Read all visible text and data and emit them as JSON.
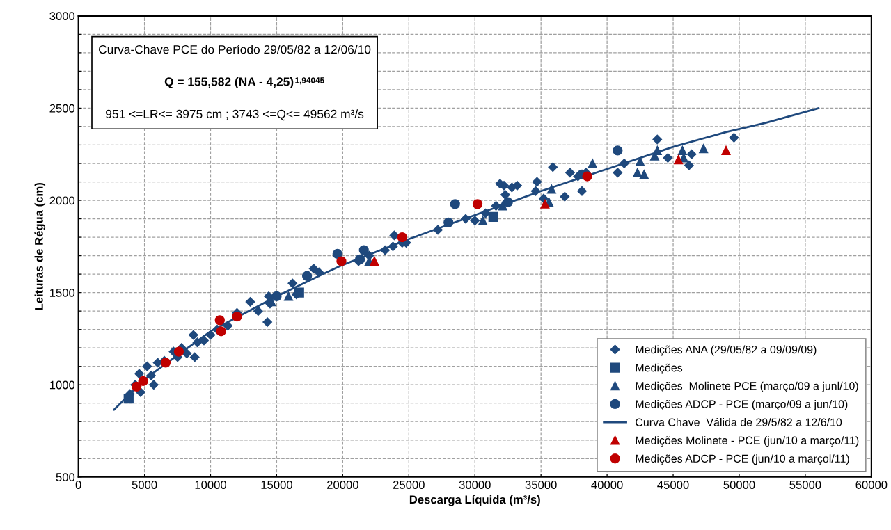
{
  "chart_data": {
    "type": "scatter",
    "xlabel": "Descarga Líquida (m³/s)",
    "ylabel": "Leituras de Régua (cm)",
    "annotations": [
      "Curva-Chave PCE do Período 29/05/82 a 12/06/10",
      "Q = 155,582 (NA - 4,25)$^{1,94045}$",
      "951 <=LR<= 3975 cm ; 3743 <=Q<= 49562 m³/s"
    ],
    "xlim": [
      0,
      60000
    ],
    "xticks": [
      0,
      5000,
      10000,
      15000,
      20000,
      25000,
      30000,
      35000,
      40000,
      45000,
      50000,
      55000,
      60000
    ],
    "ylim": [
      500,
      3000
    ],
    "yticks": [
      500,
      {
        "value": 600,
        "label": null
      },
      {
        "value": 700,
        "label": null
      },
      {
        "value": 800,
        "label": null
      },
      {
        "value": 900,
        "label": null
      },
      1000,
      {
        "value": 1100,
        "label": null
      },
      {
        "value": 1200,
        "label": null
      },
      {
        "value": 1300,
        "label": null
      },
      {
        "value": 1400,
        "label": null
      },
      1500,
      {
        "value": 1600,
        "label": null
      },
      {
        "value": 1700,
        "label": null
      },
      {
        "value": 1800,
        "label": null
      },
      {
        "value": 1900,
        "label": null
      },
      2000,
      {
        "value": 2100,
        "label": null
      },
      {
        "value": 2200,
        "label": null
      },
      {
        "value": 2300,
        "label": null
      },
      {
        "value": 2400,
        "label": null
      },
      2500,
      {
        "value": 2600,
        "label": null
      },
      {
        "value": 2700,
        "label": null
      },
      {
        "value": 2800,
        "label": null
      },
      {
        "value": 2900,
        "label": null
      },
      3000
    ],
    "grid": true,
    "legend": "bottom right",
    "series": [
      {
        "name": "Medições ANA (29/05/82 a 09/09/09)",
        "marker": "diamond",
        "color": "#1f497d",
        "x": [
          3900,
          4300,
          4600,
          4700,
          5200,
          5500,
          5700,
          6000,
          6500,
          7200,
          7500,
          7800,
          8200,
          8700,
          8800,
          9000,
          9500,
          10000,
          10500,
          11300,
          12000,
          13000,
          13600,
          14300,
          14500,
          14400,
          16200,
          16500,
          17800,
          18200,
          21200,
          22000,
          23200,
          23800,
          23900,
          24500,
          24800,
          27200,
          29300,
          30000,
          30800,
          31600,
          31900,
          32200,
          32300,
          32800,
          33200,
          34600,
          34700,
          35200,
          35900,
          36800,
          37200,
          37800,
          38100,
          38400,
          40800,
          41300,
          43800,
          44600,
          46200,
          46400,
          49600
        ],
        "values": [
          950,
          1000,
          1060,
          960,
          1100,
          1050,
          1000,
          1120,
          1130,
          1180,
          1150,
          1200,
          1170,
          1270,
          1150,
          1230,
          1240,
          1270,
          1300,
          1320,
          1390,
          1450,
          1400,
          1340,
          1440,
          1480,
          1550,
          1490,
          1630,
          1610,
          1670,
          1700,
          1730,
          1750,
          1810,
          1770,
          1770,
          1840,
          1900,
          1890,
          1930,
          1970,
          2090,
          2080,
          2030,
          2070,
          2080,
          2050,
          2100,
          2010,
          2180,
          2020,
          2150,
          2130,
          2050,
          2150,
          2150,
          2200,
          2330,
          2230,
          2190,
          2250,
          2340
        ]
      },
      {
        "name": "Medições",
        "marker": "square",
        "color": "#1f497d",
        "x": [
          3800,
          16700,
          31400
        ],
        "values": [
          925,
          1500,
          1910
        ]
      },
      {
        "name": "Medições  Molinete PCE (março/09 a junl/10)",
        "marker": "triangle",
        "color": "#1f497d",
        "x": [
          14600,
          15900,
          22000,
          30600,
          32100,
          35600,
          35800,
          38900,
          42300,
          42500,
          42800,
          43600,
          43800,
          45700,
          45800,
          47300
        ],
        "values": [
          1450,
          1480,
          1670,
          1890,
          1970,
          1990,
          2060,
          2200,
          2150,
          2210,
          2140,
          2240,
          2270,
          2270,
          2230,
          2280
        ]
      },
      {
        "name": "Medições ADCP - PCE (março/09 a jun/10)",
        "marker": "circle",
        "color": "#1f497d",
        "x": [
          15000,
          17300,
          19600,
          21300,
          21600,
          28000,
          28500,
          32500,
          38100,
          40800
        ],
        "values": [
          1480,
          1590,
          1710,
          1680,
          1730,
          1880,
          1980,
          1990,
          2140,
          2270
        ]
      },
      {
        "name": "Curva Chave  Válida de 29/5/82 a 12/6/10",
        "type": "line",
        "marker": "none",
        "color": "#1f497d",
        "x": [
          2700,
          5000,
          10000,
          15000,
          18500,
          20000,
          25000,
          30000,
          35000,
          40000,
          45000,
          49000,
          52000,
          56000
        ],
        "values": [
          865,
          1030,
          1290,
          1480,
          1600,
          1650,
          1790,
          1920,
          2050,
          2170,
          2290,
          2370,
          2420,
          2500
        ]
      },
      {
        "name": "Medições Molinete - PCE (jun/10 a março/11)",
        "marker": "triangle",
        "color": "#c00000",
        "x": [
          22400,
          35300,
          45400,
          49000
        ],
        "values": [
          1670,
          1980,
          2220,
          2270
        ]
      },
      {
        "name": "Medições ADCP - PCE (jun/10 a marçol/11)",
        "marker": "circle",
        "color": "#c00000",
        "x": [
          4400,
          4900,
          6600,
          7600,
          10700,
          10800,
          12000,
          19900,
          24500,
          30200,
          38500
        ],
        "values": [
          990,
          1020,
          1120,
          1180,
          1350,
          1290,
          1370,
          1670,
          1800,
          1980,
          2130
        ]
      }
    ]
  }
}
